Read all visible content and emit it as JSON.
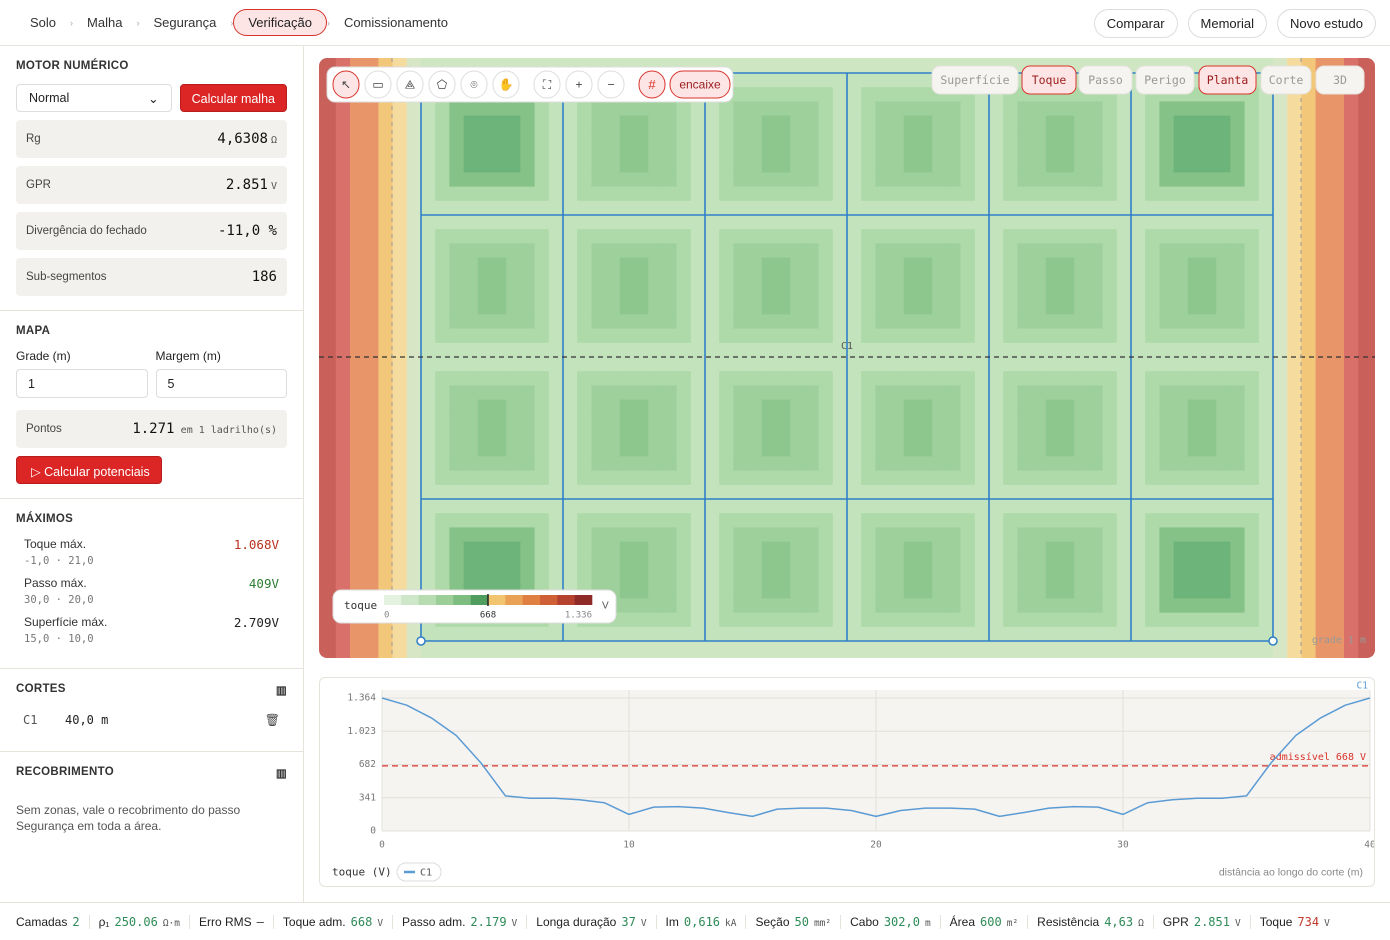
{
  "nav": {
    "steps": [
      "Solo",
      "Malha",
      "Segurança",
      "Verificação",
      "Comissionamento"
    ],
    "active": 3,
    "actions": [
      "Comparar",
      "Memorial",
      "Novo estudo"
    ]
  },
  "sidebar": {
    "engine": {
      "title": "MOTOR NUMÉRICO",
      "mode": "Normal",
      "button": "Calcular malha",
      "metrics": [
        {
          "label": "Rg",
          "value": "4,6308",
          "unit": "Ω"
        },
        {
          "label": "GPR",
          "value": "2.851",
          "unit": "V"
        },
        {
          "label": "Divergência do fechado",
          "value": "-11,0 %"
        },
        {
          "label": "Sub-segmentos",
          "value": "186"
        }
      ]
    },
    "map": {
      "title": "MAPA",
      "grid_label": "Grade (m)",
      "grid": "1",
      "margin_label": "Margem (m)",
      "margin": "5",
      "points_label": "Pontos",
      "points": "1.271",
      "points_note": "em 1 ladrilho(s)",
      "button": "Calcular potenciais"
    },
    "maxima": {
      "title": "MÁXIMOS",
      "items": [
        {
          "label": "Toque máx.",
          "value": "1.068V",
          "pos": "-1,0 · 21,0",
          "color": "#b8321e"
        },
        {
          "label": "Passo máx.",
          "value": "409V",
          "pos": "30,0 · 20,0",
          "color": "#2e7d32"
        },
        {
          "label": "Superfície máx.",
          "value": "2.709V",
          "pos": "15,0 · 10,0",
          "color": "#222222"
        }
      ]
    },
    "cuts": {
      "title": "CORTES",
      "items": [
        {
          "name": "C1",
          "length": "40,0 m"
        }
      ]
    },
    "cover": {
      "title": "RECOBRIMENTO",
      "text": "Sem zonas, vale o recobrimento do passo Segurança em toda a área."
    }
  },
  "map": {
    "snap": "encaixe",
    "views": [
      "Superfície",
      "Toque",
      "Passo",
      "Perigo",
      "Planta",
      "Corte",
      "3D"
    ],
    "active_views": [
      1,
      4
    ],
    "cut_label": "C1",
    "scale_note": "grade 1 m",
    "legend": {
      "title": "toque",
      "unit": "V",
      "colors": [
        "#e3f1df",
        "#cfe7c9",
        "#b7dcb1",
        "#9ccf98",
        "#7dbd7f",
        "#4f9d5f",
        "#f2c46e",
        "#e9a155",
        "#e07f42",
        "#cf5f36",
        "#b5412f",
        "#8f2a28"
      ],
      "ticks": [
        0,
        668,
        {
          "value": 1336,
          "label": "1.336"
        }
      ],
      "max": 1336
    }
  },
  "chart_data": {
    "type": "line",
    "x": [
      0,
      1,
      2,
      3,
      4,
      5,
      6,
      7,
      8,
      9,
      10,
      11,
      12,
      13,
      14,
      15,
      16,
      17,
      18,
      19,
      20,
      21,
      22,
      23,
      24,
      25,
      26,
      27,
      28,
      29,
      30,
      31,
      32,
      33,
      34,
      35,
      36,
      37,
      38,
      39,
      40
    ],
    "series": [
      {
        "name": "C1",
        "color": "#5b9bd5",
        "values": [
          1364,
          1290,
          1160,
          980,
          700,
          360,
          335,
          335,
          320,
          290,
          170,
          245,
          250,
          235,
          190,
          150,
          225,
          235,
          235,
          210,
          150,
          210,
          235,
          235,
          225,
          150,
          190,
          235,
          250,
          245,
          170,
          290,
          320,
          335,
          335,
          360,
          700,
          980,
          1160,
          1290,
          1364
        ]
      }
    ],
    "xlim": [
      0,
      40
    ],
    "xticks": [
      0,
      10,
      20,
      30,
      40
    ],
    "ylim": [
      0,
      1364
    ],
    "yticks": [
      0,
      341,
      682,
      {
        "value": 1023,
        "label": "1.023"
      },
      {
        "value": 1364,
        "label": "1.364"
      }
    ],
    "grid": true,
    "threshold": {
      "value": 668,
      "label": "admissível 668 V",
      "color": "#d9322b"
    },
    "ylabel": "toque (V)",
    "xlabel": "distância ao longo do corte (m)"
  },
  "status": [
    {
      "label": "Camadas",
      "value": "2"
    },
    {
      "label": "ρ₁",
      "value": "250.06",
      "unit": "Ω·m"
    },
    {
      "label": "Erro RMS",
      "value": "—"
    },
    {
      "label": "Toque adm.",
      "value": "668",
      "unit": "V"
    },
    {
      "label": "Passo adm.",
      "value": "2.179",
      "unit": "V"
    },
    {
      "label": "Longa duração",
      "value": "37",
      "unit": "V"
    },
    {
      "label": "Im",
      "value": "0,616",
      "unit": "kA"
    },
    {
      "label": "Seção",
      "value": "50",
      "unit": "mm²"
    },
    {
      "label": "Cabo",
      "value": "302,0",
      "unit": "m"
    },
    {
      "label": "Área",
      "value": "600",
      "unit": "m²"
    },
    {
      "label": "Resistência",
      "value": "4,63",
      "unit": "Ω"
    },
    {
      "label": "GPR",
      "value": "2.851",
      "unit": "V"
    },
    {
      "label": "Toque",
      "value": "734",
      "unit": "V"
    }
  ]
}
